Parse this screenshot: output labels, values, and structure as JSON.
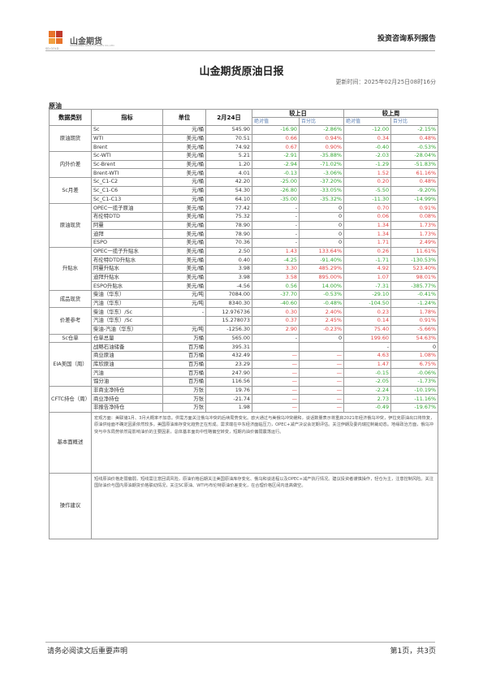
{
  "header": {
    "brand": "山金期货",
    "brand_sub": "SHANDONG GOLD FUTURES CO.,LTD",
    "brand_abbr": "SD-GOLD",
    "series": "投资咨询系列报告"
  },
  "title": "山金期货原油日报",
  "update_time": "更新时间：2025年02月25日08时16分",
  "section": "原油",
  "table_headers": {
    "category": "数据类别",
    "indicator": "指标",
    "unit": "单位",
    "date": "2月24日",
    "vs_prev_day": "较上日",
    "vs_prev_week": "较上周",
    "abs": "绝对值",
    "pct": "百分比"
  },
  "groups": [
    {
      "name": "原油期货",
      "rows": [
        {
          "ind": "Sc",
          "unit": "元/桶",
          "val": "545.90",
          "d_abs": "-16.90",
          "d_pct": "-2.86%",
          "w_abs": "-12.00",
          "w_pct": "-2.15%",
          "dc": "g",
          "wc": "g"
        },
        {
          "ind": "WTI",
          "unit": "美元/桶",
          "val": "70.51",
          "d_abs": "0.66",
          "d_pct": "0.94%",
          "w_abs": "0.34",
          "w_pct": "0.48%",
          "dc": "rd",
          "wc": "rd"
        },
        {
          "ind": "Brent",
          "unit": "美元/桶",
          "val": "74.92",
          "d_abs": "0.67",
          "d_pct": "0.90%",
          "w_abs": "-0.40",
          "w_pct": "-0.53%",
          "dc": "rd",
          "wc": "g"
        }
      ]
    },
    {
      "name": "内外价差",
      "rows": [
        {
          "ind": "Sc-WTI",
          "unit": "美元/桶",
          "val": "5.21",
          "d_abs": "-2.91",
          "d_pct": "-35.88%",
          "w_abs": "-2.03",
          "w_pct": "-28.04%",
          "dc": "g",
          "wc": "g"
        },
        {
          "ind": "Sc-Brent",
          "unit": "美元/桶",
          "val": "1.20",
          "d_abs": "-2.94",
          "d_pct": "-71.02%",
          "w_abs": "-1.29",
          "w_pct": "-51.83%",
          "dc": "g",
          "wc": "g"
        },
        {
          "ind": "Brent-WTI",
          "unit": "美元/桶",
          "val": "4.01",
          "d_abs": "-0.13",
          "d_pct": "-3.06%",
          "w_abs": "1.52",
          "w_pct": "61.16%",
          "dc": "g",
          "wc": "rd"
        }
      ]
    },
    {
      "name": "Sc月差",
      "rows": [
        {
          "ind": "Sc_C1-C2",
          "unit": "元/桶",
          "val": "42.20",
          "d_abs": "-25.00",
          "d_pct": "-37.20%",
          "w_abs": "0.20",
          "w_pct": "0.48%",
          "dc": "g",
          "wc": "rd"
        },
        {
          "ind": "Sc_C1-C6",
          "unit": "元/桶",
          "val": "54.30",
          "d_abs": "-26.80",
          "d_pct": "-33.05%",
          "w_abs": "-5.50",
          "w_pct": "-9.20%",
          "dc": "g",
          "wc": "g"
        },
        {
          "ind": "Sc_C1-C13",
          "unit": "元/桶",
          "val": "64.10",
          "d_abs": "-35.00",
          "d_pct": "-35.32%",
          "w_abs": "-11.30",
          "w_pct": "-14.99%",
          "dc": "g",
          "wc": "g"
        }
      ]
    },
    {
      "name": "原油现货",
      "rows": [
        {
          "ind": "OPEC一揽子原油",
          "unit": "美元/桶",
          "val": "77.42",
          "d_abs": "-",
          "d_pct": "0",
          "w_abs": "0.70",
          "w_pct": "0.91%",
          "dc": "",
          "wc": "rd"
        },
        {
          "ind": "布伦特DTD",
          "unit": "美元/桶",
          "val": "75.32",
          "d_abs": "-",
          "d_pct": "0",
          "w_abs": "0.06",
          "w_pct": "0.08%",
          "dc": "",
          "wc": "rd"
        },
        {
          "ind": "阿曼",
          "unit": "美元/桶",
          "val": "78.90",
          "d_abs": "-",
          "d_pct": "0",
          "w_abs": "1.34",
          "w_pct": "1.73%",
          "dc": "",
          "wc": "rd"
        },
        {
          "ind": "迪拜",
          "unit": "美元/桶",
          "val": "78.90",
          "d_abs": "-",
          "d_pct": "0",
          "w_abs": "1.34",
          "w_pct": "1.73%",
          "dc": "",
          "wc": "rd"
        },
        {
          "ind": "ESPO",
          "unit": "美元/桶",
          "val": "70.36",
          "d_abs": "-",
          "d_pct": "0",
          "w_abs": "1.71",
          "w_pct": "2.49%",
          "dc": "",
          "wc": "rd"
        }
      ]
    },
    {
      "name": "升贴水",
      "rows": [
        {
          "ind": "OPEC一揽子升贴水",
          "unit": "美元/桶",
          "val": "2.50",
          "d_abs": "1.43",
          "d_pct": "133.64%",
          "w_abs": "0.26",
          "w_pct": "11.61%",
          "dc": "rd",
          "wc": "rd"
        },
        {
          "ind": "布伦特DTD升贴水",
          "unit": "美元/桶",
          "val": "0.40",
          "d_abs": "-4.25",
          "d_pct": "-91.40%",
          "w_abs": "-1.71",
          "w_pct": "-130.53%",
          "dc": "g",
          "wc": "g"
        },
        {
          "ind": "阿曼升贴水",
          "unit": "美元/桶",
          "val": "3.98",
          "d_abs": "3.30",
          "d_pct": "485.29%",
          "w_abs": "4.92",
          "w_pct": "523.40%",
          "dc": "rd",
          "wc": "rd"
        },
        {
          "ind": "迪拜升贴水",
          "unit": "美元/桶",
          "val": "3.98",
          "d_abs": "3.58",
          "d_pct": "895.00%",
          "w_abs": "1.07",
          "w_pct": "98.01%",
          "dc": "rd",
          "wc": "rd"
        },
        {
          "ind": "ESPO升贴水",
          "unit": "美元/桶",
          "val": "-4.56",
          "d_abs": "0.56",
          "d_pct": "14.00%",
          "w_abs": "-7.31",
          "w_pct": "-385.77%",
          "dc": "g",
          "wc": "g"
        }
      ]
    },
    {
      "name": "成品现货",
      "rows": [
        {
          "ind": "柴油（华东）",
          "unit": "元/吨",
          "val": "7084.00",
          "d_abs": "-37.70",
          "d_pct": "-0.53%",
          "w_abs": "-29.10",
          "w_pct": "-0.41%",
          "dc": "g",
          "wc": "g"
        },
        {
          "ind": "汽油（华东）",
          "unit": "元/吨",
          "val": "8340.30",
          "d_abs": "-40.60",
          "d_pct": "-0.48%",
          "w_abs": "-104.50",
          "w_pct": "-1.24%",
          "dc": "g",
          "wc": "g"
        }
      ]
    },
    {
      "name": "价差参考",
      "rows": [
        {
          "ind": "柴油（华东）/Sc",
          "unit": "-",
          "val": "12.976736",
          "d_abs": "0.30",
          "d_pct": "2.40%",
          "w_abs": "0.23",
          "w_pct": "1.78%",
          "dc": "rd",
          "wc": "rd"
        },
        {
          "ind": "汽油（华东）/Sc",
          "unit": "",
          "val": "15.278073",
          "d_abs": "0.37",
          "d_pct": "2.45%",
          "w_abs": "0.14",
          "w_pct": "0.91%",
          "dc": "rd",
          "wc": "rd"
        },
        {
          "ind": "柴油-汽油（华东）",
          "unit": "元/吨",
          "val": "-1256.30",
          "d_abs": "2.90",
          "d_pct": "-0.23%",
          "w_abs": "75.40",
          "w_pct": "-5.66%",
          "dc": "rd",
          "wc": "rd"
        }
      ]
    },
    {
      "name": "Sc仓单",
      "rows": [
        {
          "ind": "仓单总量",
          "unit": "万桶",
          "val": "565.00",
          "d_abs": "-",
          "d_pct": "0",
          "w_abs": "199.60",
          "w_pct": "54.63%",
          "dc": "",
          "wc": "rd"
        }
      ]
    },
    {
      "name": "EIA美国（周）",
      "rows": [
        {
          "ind": "战略石油储备",
          "unit": "百万桶",
          "val": "395.31",
          "d_abs": "",
          "d_pct": "",
          "w_abs": "-",
          "w_pct": "0",
          "dc": "",
          "wc": ""
        },
        {
          "ind": "商业原油",
          "unit": "百万桶",
          "val": "432.49",
          "d_abs": "—",
          "d_pct": "—",
          "w_abs": "4.63",
          "w_pct": "1.08%",
          "dc": "rd",
          "wc": "rd"
        },
        {
          "ind": "库欣原油",
          "unit": "百万桶",
          "val": "23.29",
          "d_abs": "—",
          "d_pct": "—",
          "w_abs": "1.47",
          "w_pct": "6.75%",
          "dc": "rd",
          "wc": "rd"
        },
        {
          "ind": "汽油",
          "unit": "百万桶",
          "val": "247.90",
          "d_abs": "—",
          "d_pct": "—",
          "w_abs": "-0.15",
          "w_pct": "-0.06%",
          "dc": "rd",
          "wc": "g"
        },
        {
          "ind": "馏分油",
          "unit": "百万桶",
          "val": "116.56",
          "d_abs": "—",
          "d_pct": "—",
          "w_abs": "-2.05",
          "w_pct": "-1.73%",
          "dc": "rd",
          "wc": "g"
        }
      ]
    },
    {
      "name": "CFTC持仓（周）",
      "rows": [
        {
          "ind": "非商业净持仓",
          "unit": "万张",
          "val": "19.76",
          "d_abs": "—",
          "d_pct": "—",
          "w_abs": "-2.24",
          "w_pct": "-10.19%",
          "dc": "rd",
          "wc": "g"
        },
        {
          "ind": "商业净持仓",
          "unit": "万张",
          "val": "-21.74",
          "d_abs": "—",
          "d_pct": "—",
          "w_abs": "2.73",
          "w_pct": "-11.16%",
          "dc": "rd",
          "wc": "g"
        },
        {
          "ind": "非报告净持仓",
          "unit": "万张",
          "val": "1.98",
          "d_abs": "—",
          "d_pct": "—",
          "w_abs": "-0.49",
          "w_pct": "-19.67%",
          "dc": "rd",
          "wc": "g"
        }
      ]
    }
  ],
  "overview_label": "基本面概述",
  "overview_text": "宏观方面：美联储1月、3月大概率不加息。供需方面关注俄乌冲突的后续局势变化。欧大通过与美俄乌冲突缓和，谈话数量表示将重启2021年经济俄乌冲突，伊拉克原油出口将恢复，原油供给面不确定因素依然较多。美国原油库存变化趋势正在形成。需求端在中东经济面临压力，OPEC+减产决议会定期评估。关注伊朗及委内瑞拉制裁动态。地缘政治方面，俄乌冲突与中东局势依然是影响油价的主要因素，总体基本面向中性略偏空转变，短期内油价偏弱震荡运行。",
  "advice_label": "操作建议",
  "advice_text": "短线原油价格走弱偏弱，短线需注意回调风险，原油价格后期关注美国原油库存变化、俄乌和谈进程以及OPEC+减产执行情况。建议投资者谨慎操作，轻仓为主，注意控制风险。关注国际油价与国内原油期货价格联动情况，关注SC原油、WTI与布伦特原油价差变化，在合理价格区间内逢高做空。",
  "footer": {
    "left": "请务必阅读文后重要声明",
    "right": "第1页，共3页"
  }
}
